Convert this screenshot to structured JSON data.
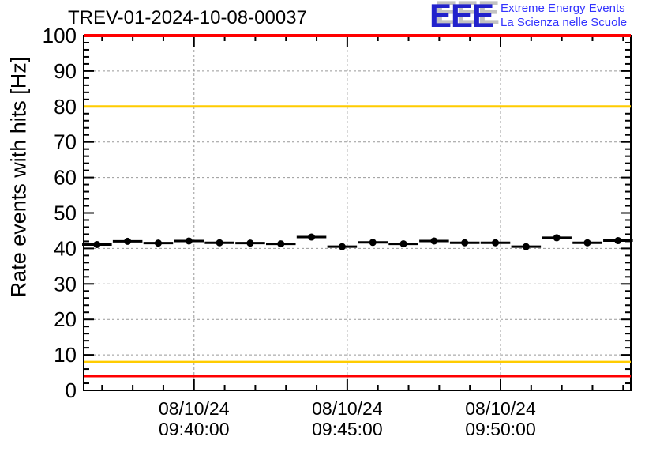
{
  "header": {
    "title": "TREV-01-2024-10-08-00037",
    "logo": {
      "acronym": "EEE",
      "line1": "Extreme Energy Events",
      "line2": "La Scienza nelle Scuole",
      "acronym_color": "#2222cc",
      "shadow_color": "#c2c2c2",
      "text_color": "#3333ff"
    }
  },
  "chart_data": {
    "type": "scatter",
    "title": "TREV-01-2024-10-08-00037",
    "xlabel": "",
    "ylabel": "Rate events with hits [Hz]",
    "ylim": [
      0,
      100
    ],
    "y_major_tick_step": 10,
    "y_minor_tick_step": 2,
    "y_tick_labels": [
      "0",
      "10",
      "20",
      "30",
      "40",
      "50",
      "60",
      "70",
      "80",
      "90",
      "100"
    ],
    "x_date": "08/10/24",
    "x_range_time": [
      "09:36:24",
      "09:54:15"
    ],
    "x_major_ticks": [
      {
        "date": "08/10/24",
        "time": "09:40:00"
      },
      {
        "date": "08/10/24",
        "time": "09:45:00"
      },
      {
        "date": "08/10/24",
        "time": "09:50:00"
      }
    ],
    "x_minor_tick_step_seconds": 60,
    "grid": {
      "show": true,
      "color": "#999999",
      "style": "dashed"
    },
    "threshold_lines": [
      {
        "value": 100,
        "color": "#ff0000",
        "label": "error-high"
      },
      {
        "value": 80,
        "color": "#ffcc00",
        "label": "warning-high"
      },
      {
        "value": 8,
        "color": "#ffcc00",
        "label": "warning-low"
      },
      {
        "value": 4,
        "color": "#ff0000",
        "label": "error-low"
      }
    ],
    "legend": {
      "show": false
    },
    "series": [
      {
        "name": "rate-events-with-hits",
        "marker": "filled-circle",
        "color": "#000000",
        "bin_half_width_seconds": 29,
        "y_error": 0.8,
        "points": [
          {
            "t": "09:36:50",
            "y": 41.1
          },
          {
            "t": "09:37:50",
            "y": 42.0
          },
          {
            "t": "09:38:50",
            "y": 41.5
          },
          {
            "t": "09:39:50",
            "y": 42.1
          },
          {
            "t": "09:40:50",
            "y": 41.6
          },
          {
            "t": "09:41:50",
            "y": 41.5
          },
          {
            "t": "09:42:50",
            "y": 41.3
          },
          {
            "t": "09:43:50",
            "y": 43.2
          },
          {
            "t": "09:44:50",
            "y": 40.5
          },
          {
            "t": "09:45:50",
            "y": 41.7
          },
          {
            "t": "09:46:50",
            "y": 41.3
          },
          {
            "t": "09:47:50",
            "y": 42.1
          },
          {
            "t": "09:48:50",
            "y": 41.6
          },
          {
            "t": "09:49:50",
            "y": 41.6
          },
          {
            "t": "09:50:50",
            "y": 40.5
          },
          {
            "t": "09:51:50",
            "y": 43.0
          },
          {
            "t": "09:52:50",
            "y": 41.6
          },
          {
            "t": "09:53:50",
            "y": 42.2
          }
        ]
      }
    ]
  }
}
